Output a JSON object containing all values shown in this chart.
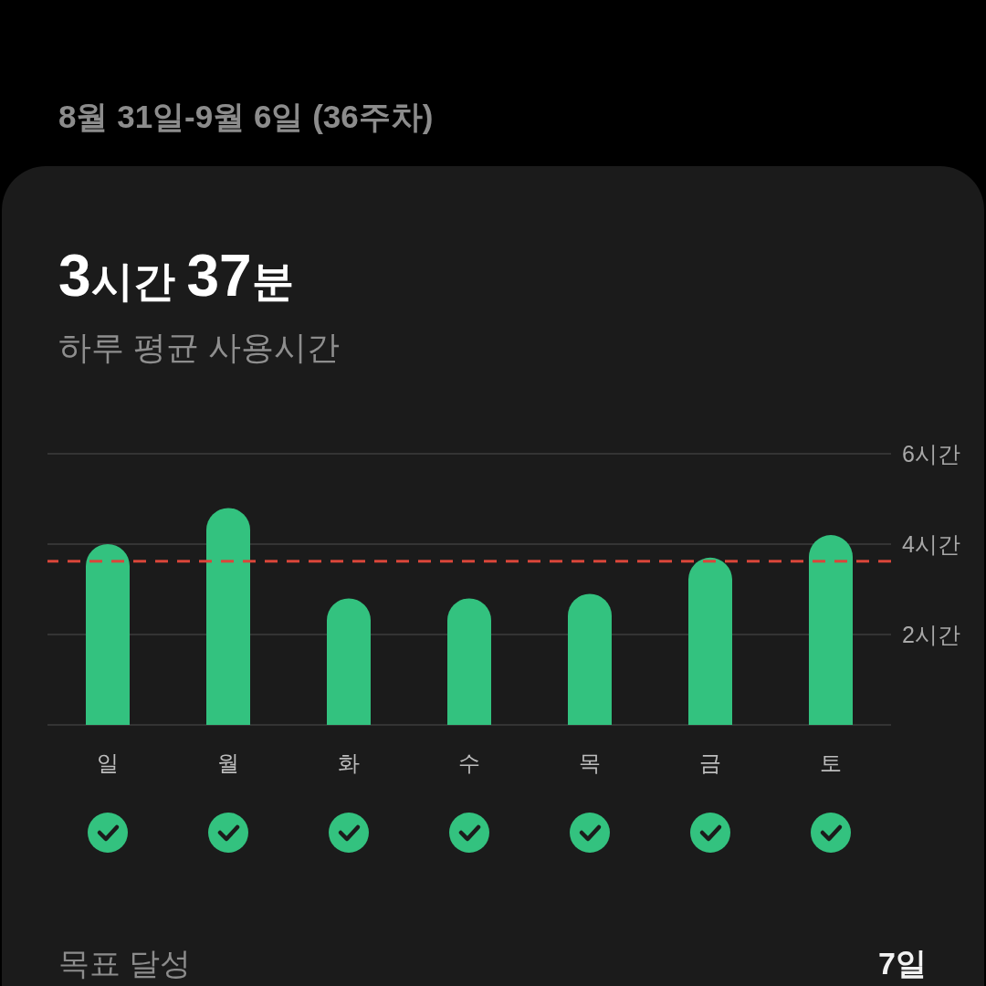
{
  "chart_data": {
    "type": "bar",
    "title": "3시간 37분",
    "subtitle": "하루 평균 사용시간",
    "annotations": [
      "8월 31일-9월 6일 (36주차)",
      "목표 달성",
      "7일"
    ],
    "categories": [
      "일",
      "월",
      "화",
      "수",
      "목",
      "금",
      "토"
    ],
    "values": [
      4.0,
      4.8,
      2.8,
      2.8,
      2.9,
      3.7,
      4.2
    ],
    "color": "#33c27f",
    "ylim": [
      0,
      6
    ],
    "yticks": [
      {
        "value": 0,
        "label": null
      },
      {
        "value": 2,
        "label": "2시간"
      },
      {
        "value": 4,
        "label": "4시간"
      },
      {
        "value": 6,
        "label": "6시간"
      }
    ],
    "grid": "y",
    "ref_lines": [
      {
        "axis": "y",
        "value": 3.62,
        "color": "#d9463a",
        "line_style": "dashed"
      }
    ]
  }
}
